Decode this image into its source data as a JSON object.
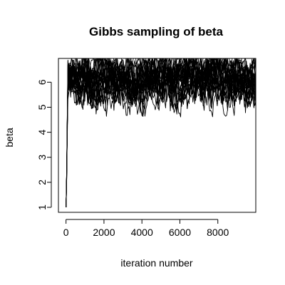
{
  "chart_data": {
    "type": "line",
    "title": "Gibbs sampling of beta",
    "xlabel": "iteration number",
    "ylabel": "beta",
    "xlim": [
      -400,
      10000
    ],
    "ylim": [
      0.8,
      6.95
    ],
    "x_ticks": [
      0,
      2000,
      4000,
      6000,
      8000
    ],
    "x_tick_labels": [
      "0",
      "2000",
      "4000",
      "6000",
      "8000"
    ],
    "y_ticks": [
      1,
      2,
      3,
      4,
      5,
      6
    ],
    "y_tick_labels": [
      "1",
      "2",
      "3",
      "4",
      "5",
      "6"
    ],
    "grid": false,
    "legend": "none",
    "line_color": "#000000",
    "series_count": 25,
    "iterations": [
      1,
      10000
    ],
    "initial_value": 1,
    "burn_in_end_iteration": 100,
    "trace_range": [
      4.6,
      7.0
    ],
    "trace_center": 6.1
  }
}
